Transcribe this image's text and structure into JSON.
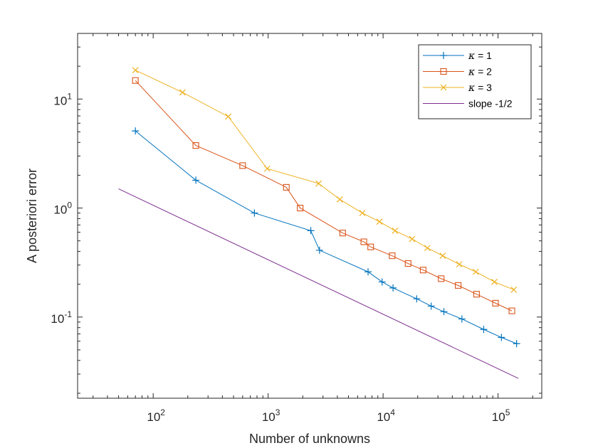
{
  "chart_data": {
    "type": "line",
    "title": "",
    "xlabel": "Number of unknowns",
    "ylabel": "A posteriori error",
    "xscale": "log",
    "yscale": "log",
    "xlim": [
      22,
      240000
    ],
    "ylim": [
      0.018,
      40
    ],
    "grid": false,
    "legend_position": "top-right",
    "x_ticks": [
      {
        "value": 100,
        "base": "10",
        "exp": "2"
      },
      {
        "value": 1000,
        "base": "10",
        "exp": "3"
      },
      {
        "value": 10000,
        "base": "10",
        "exp": "4"
      },
      {
        "value": 100000,
        "base": "10",
        "exp": "5"
      }
    ],
    "y_ticks": [
      {
        "value": 0.1,
        "base": "10",
        "exp": "-1"
      },
      {
        "value": 1,
        "base": "10",
        "exp": "0"
      },
      {
        "value": 10,
        "base": "10",
        "exp": "1"
      }
    ],
    "series": [
      {
        "name": "κ = 1",
        "label_symbol": "κ",
        "label_rest": " = 1",
        "color": "#0072BD",
        "marker": "plus",
        "x": [
          70,
          235,
          760,
          2350,
          2800,
          7400,
          9800,
          12200,
          19600,
          26200,
          33800,
          48500,
          75000,
          107000,
          145000
        ],
        "y": [
          5.1,
          1.8,
          0.9,
          0.62,
          0.41,
          0.26,
          0.21,
          0.185,
          0.147,
          0.126,
          0.112,
          0.096,
          0.077,
          0.065,
          0.057
        ]
      },
      {
        "name": "κ = 2",
        "label_symbol": "κ",
        "label_rest": " = 2",
        "color": "#D95319",
        "marker": "square",
        "x": [
          70,
          235,
          600,
          1440,
          1900,
          4450,
          6800,
          7800,
          12000,
          16500,
          22300,
          32000,
          45000,
          65000,
          95000,
          132000
        ],
        "y": [
          14.8,
          3.75,
          2.45,
          1.55,
          1.0,
          0.59,
          0.49,
          0.44,
          0.365,
          0.31,
          0.27,
          0.225,
          0.195,
          0.162,
          0.134,
          0.114
        ]
      },
      {
        "name": "κ = 3",
        "label_symbol": "κ",
        "label_rest": " = 3",
        "color": "#EDB120",
        "marker": "x",
        "x": [
          70,
          180,
          450,
          980,
          2750,
          4200,
          6600,
          9300,
          12700,
          17900,
          24300,
          33000,
          46000,
          64000,
          93000,
          137000
        ],
        "y": [
          18.4,
          11.5,
          6.9,
          2.3,
          1.68,
          1.2,
          0.9,
          0.75,
          0.62,
          0.52,
          0.43,
          0.365,
          0.305,
          0.26,
          0.21,
          0.178
        ]
      },
      {
        "name": "slope -1/2",
        "label_symbol": "",
        "label_rest": "slope -1/2",
        "color": "#7E2F8E",
        "marker": "none",
        "x": [
          50,
          150000
        ],
        "y": [
          1.5,
          0.0274
        ]
      }
    ]
  }
}
